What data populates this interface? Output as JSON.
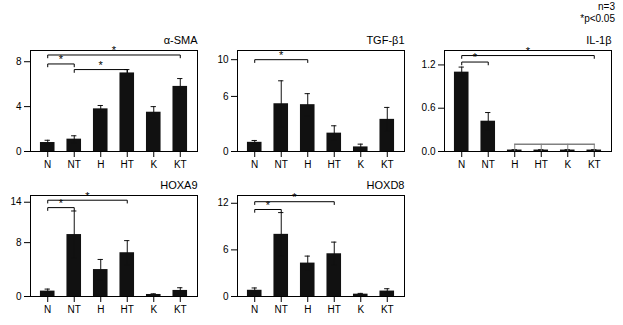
{
  "chart_data": [
    {
      "type": "bar",
      "title": "α-SMA",
      "categories": [
        "N",
        "NT",
        "H",
        "HT",
        "K",
        "KT"
      ],
      "values": [
        0.8,
        1.1,
        3.8,
        7.0,
        3.5,
        5.8
      ],
      "errors": [
        0.2,
        0.3,
        0.3,
        0.3,
        0.5,
        0.7
      ],
      "color": "#111111",
      "ylim": [
        0,
        9
      ],
      "yticks": [
        0,
        4,
        8
      ],
      "grid": false,
      "brackets": [
        {
          "from": "N",
          "to": "NT",
          "y": 7.8,
          "label": "*"
        },
        {
          "from": "NT",
          "to": "HT",
          "y": 7.3,
          "label": "*"
        },
        {
          "from": "N",
          "to": "KT",
          "y": 8.6,
          "label": "*"
        }
      ]
    },
    {
      "type": "bar",
      "title": "TGF-β1",
      "categories": [
        "N",
        "NT",
        "H",
        "HT",
        "K",
        "KT"
      ],
      "values": [
        1.0,
        5.2,
        5.1,
        2.0,
        0.5,
        3.5
      ],
      "errors": [
        0.2,
        2.5,
        1.2,
        0.8,
        0.3,
        1.3
      ],
      "color": "#111111",
      "ylim": [
        0,
        11
      ],
      "yticks": [
        0,
        6,
        10
      ],
      "grid": false,
      "brackets": [
        {
          "from": "N",
          "to": "H",
          "y": 10.0,
          "label": "*"
        }
      ]
    },
    {
      "type": "bar",
      "title": "IL-1β",
      "categories": [
        "N",
        "NT",
        "H",
        "HT",
        "K",
        "KT"
      ],
      "values": [
        1.1,
        0.42,
        0.02,
        0.02,
        0.02,
        0.02
      ],
      "errors": [
        0.07,
        0.12,
        0.005,
        0.005,
        0.005,
        0.005
      ],
      "color": "#111111",
      "ylim": [
        0,
        1.4
      ],
      "yticks": [
        0,
        0.6,
        1.2
      ],
      "grid": false,
      "brackets": [
        {
          "from": "N",
          "to": "NT",
          "y": 1.24,
          "label": "*"
        },
        {
          "from": "N",
          "to": "KT",
          "y": 1.33,
          "label": "*"
        }
      ],
      "gray_bracket": {
        "categories": [
          "H",
          "HT",
          "K",
          "KT"
        ],
        "y": 0.1,
        "color": "gray"
      },
      "annotations": [
        "n=3",
        "*p<0.05"
      ]
    },
    {
      "type": "bar",
      "title": "HOXA9",
      "categories": [
        "N",
        "NT",
        "H",
        "HT",
        "K",
        "KT"
      ],
      "values": [
        0.8,
        9.2,
        4.0,
        6.5,
        0.3,
        0.9
      ],
      "errors": [
        0.3,
        3.5,
        1.5,
        1.8,
        0.1,
        0.4
      ],
      "color": "#111111",
      "ylim": [
        0,
        15
      ],
      "yticks": [
        0,
        8,
        14
      ],
      "grid": false,
      "brackets": [
        {
          "from": "N",
          "to": "NT",
          "y": 13.2,
          "label": "*"
        },
        {
          "from": "N",
          "to": "HT",
          "y": 14.3,
          "label": "*"
        }
      ]
    },
    {
      "type": "bar",
      "title": "HOXD8",
      "categories": [
        "N",
        "NT",
        "H",
        "HT",
        "K",
        "KT"
      ],
      "values": [
        0.8,
        8.0,
        4.3,
        5.5,
        0.3,
        0.7
      ],
      "errors": [
        0.3,
        2.8,
        0.9,
        1.5,
        0.1,
        0.3
      ],
      "color": "#111111",
      "ylim": [
        0,
        13
      ],
      "yticks": [
        0,
        6,
        12
      ],
      "grid": false,
      "brackets": [
        {
          "from": "N",
          "to": "NT",
          "y": 11.2,
          "label": "*"
        },
        {
          "from": "N",
          "to": "HT",
          "y": 12.2,
          "label": "*"
        }
      ]
    }
  ]
}
